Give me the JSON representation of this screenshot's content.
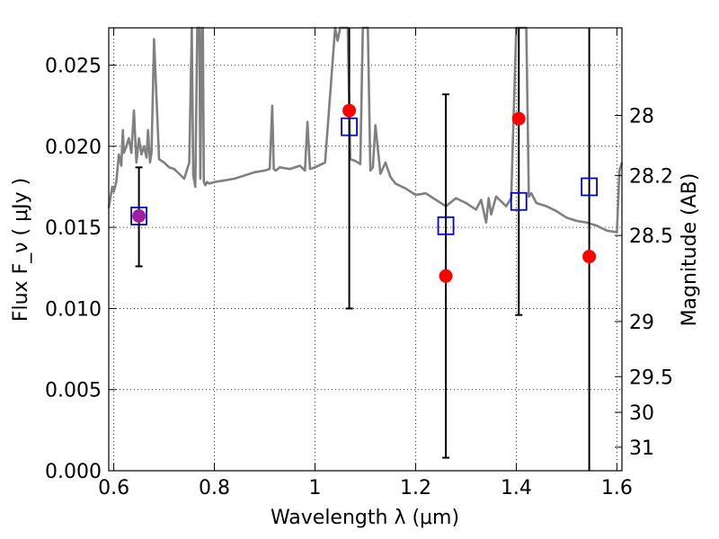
{
  "chart_data": {
    "type": "scatter",
    "xlabel": "Wavelength  λ (μm)",
    "ylabel": "Flux  F_ν  ( μJy )",
    "y2label": "Magnitude (AB)",
    "xlim": [
      0.59,
      1.61
    ],
    "ylim": [
      0.0,
      0.0273
    ],
    "grid": true,
    "x_ticks": [
      {
        "value": 0.6,
        "label": "0.6"
      },
      {
        "value": 0.8,
        "label": "0.8"
      },
      {
        "value": 1.0,
        "label": "1"
      },
      {
        "value": 1.2,
        "label": "1.2"
      },
      {
        "value": 1.4,
        "label": "1.4"
      },
      {
        "value": 1.6,
        "label": "1.6"
      }
    ],
    "y_ticks": [
      {
        "value": 0.0,
        "label": "0.000"
      },
      {
        "value": 0.005,
        "label": "0.005"
      },
      {
        "value": 0.01,
        "label": "0.010"
      },
      {
        "value": 0.015,
        "label": "0.015"
      },
      {
        "value": 0.02,
        "label": "0.020"
      },
      {
        "value": 0.025,
        "label": "0.025"
      }
    ],
    "mag_ticks": [
      {
        "value": 0.0219,
        "label": "28"
      },
      {
        "value": 0.0182,
        "label": "28.2"
      },
      {
        "value": 0.0145,
        "label": "28.5"
      },
      {
        "value": 0.0092,
        "label": "29"
      },
      {
        "value": 0.0058,
        "label": "29.5"
      },
      {
        "value": 0.0036,
        "label": "30"
      },
      {
        "value": 0.00145,
        "label": "31"
      }
    ],
    "colors": {
      "spectrum": "#808080",
      "observed": "#ff0000",
      "model": "#0000cc",
      "errorbar": "#000000",
      "overlap": "#a020a0"
    },
    "spectrum": {
      "name": "",
      "x": [
        0.59,
        0.597,
        0.6,
        0.605,
        0.61,
        0.615,
        0.618,
        0.62,
        0.625,
        0.63,
        0.635,
        0.64,
        0.645,
        0.65,
        0.655,
        0.66,
        0.665,
        0.668,
        0.672,
        0.675,
        0.68,
        0.69,
        0.7,
        0.71,
        0.72,
        0.73,
        0.74,
        0.75,
        0.755,
        0.758,
        0.762,
        0.766,
        0.77,
        0.772,
        0.775,
        0.777,
        0.779,
        0.782,
        0.785,
        0.79,
        0.8,
        0.82,
        0.84,
        0.86,
        0.88,
        0.9,
        0.91,
        0.915,
        0.918,
        0.922,
        0.93,
        0.95,
        0.97,
        0.98,
        0.985,
        0.99,
        1.0,
        1.02,
        1.04,
        1.045,
        1.05,
        1.055,
        1.06,
        1.065,
        1.07,
        1.08,
        1.09,
        1.095,
        1.1,
        1.105,
        1.11,
        1.115,
        1.12,
        1.13,
        1.14,
        1.15,
        1.16,
        1.18,
        1.2,
        1.22,
        1.24,
        1.26,
        1.28,
        1.3,
        1.32,
        1.33,
        1.34,
        1.345,
        1.35,
        1.36,
        1.38,
        1.39,
        1.4,
        1.405,
        1.41,
        1.415,
        1.42,
        1.425,
        1.43,
        1.44,
        1.46,
        1.48,
        1.5,
        1.52,
        1.54,
        1.56,
        1.58,
        1.6,
        1.605,
        1.61
      ],
      "y": [
        0.0162,
        0.0175,
        0.0172,
        0.0178,
        0.0195,
        0.0188,
        0.021,
        0.0196,
        0.02,
        0.0205,
        0.0196,
        0.0222,
        0.019,
        0.0205,
        0.0195,
        0.02,
        0.0193,
        0.021,
        0.019,
        0.0196,
        0.0266,
        0.0192,
        0.019,
        0.0187,
        0.0186,
        0.0183,
        0.018,
        0.019,
        0.0273,
        0.0182,
        0.0175,
        0.0273,
        0.0273,
        0.018,
        0.0273,
        0.0273,
        0.0178,
        0.0176,
        0.0178,
        0.0177,
        0.0178,
        0.0179,
        0.018,
        0.0182,
        0.0184,
        0.0185,
        0.0186,
        0.0225,
        0.0186,
        0.0185,
        0.0187,
        0.0186,
        0.0188,
        0.0185,
        0.0215,
        0.0186,
        0.0187,
        0.019,
        0.0273,
        0.0265,
        0.0273,
        0.0273,
        0.0273,
        0.0273,
        0.0192,
        0.0191,
        0.0189,
        0.0273,
        0.0273,
        0.0273,
        0.0185,
        0.0187,
        0.0213,
        0.0183,
        0.019,
        0.0181,
        0.0177,
        0.0174,
        0.017,
        0.0171,
        0.0167,
        0.0163,
        0.0168,
        0.0165,
        0.0161,
        0.0167,
        0.0153,
        0.0168,
        0.0158,
        0.0169,
        0.0163,
        0.0168,
        0.0273,
        0.0273,
        0.0273,
        0.0273,
        0.0273,
        0.0169,
        0.0171,
        0.0165,
        0.0163,
        0.016,
        0.0156,
        0.0154,
        0.0153,
        0.0151,
        0.0148,
        0.0147,
        0.0185,
        0.019
      ]
    },
    "series": [
      {
        "name": "",
        "marker": "circle",
        "points": [
          {
            "x": 0.65,
            "y": 0.0157,
            "yerr_low": 0.0126,
            "yerr_high": 0.0187
          },
          {
            "x": 1.068,
            "y": 0.0222,
            "yerr_low": 0.01,
            "yerr_high": 0.0273
          },
          {
            "x": 1.26,
            "y": 0.012,
            "yerr_low": 0.0008,
            "yerr_high": 0.0232
          },
          {
            "x": 1.405,
            "y": 0.0217,
            "yerr_low": 0.0096,
            "yerr_high": 0.0273
          },
          {
            "x": 1.545,
            "y": 0.0132,
            "yerr_low": 0.0,
            "yerr_high": 0.0273
          }
        ]
      },
      {
        "name": "",
        "marker": "square",
        "points": [
          {
            "x": 0.65,
            "y": 0.0157
          },
          {
            "x": 1.068,
            "y": 0.0212
          },
          {
            "x": 1.26,
            "y": 0.0151
          },
          {
            "x": 1.405,
            "y": 0.0166
          },
          {
            "x": 1.545,
            "y": 0.0175
          }
        ]
      }
    ]
  }
}
